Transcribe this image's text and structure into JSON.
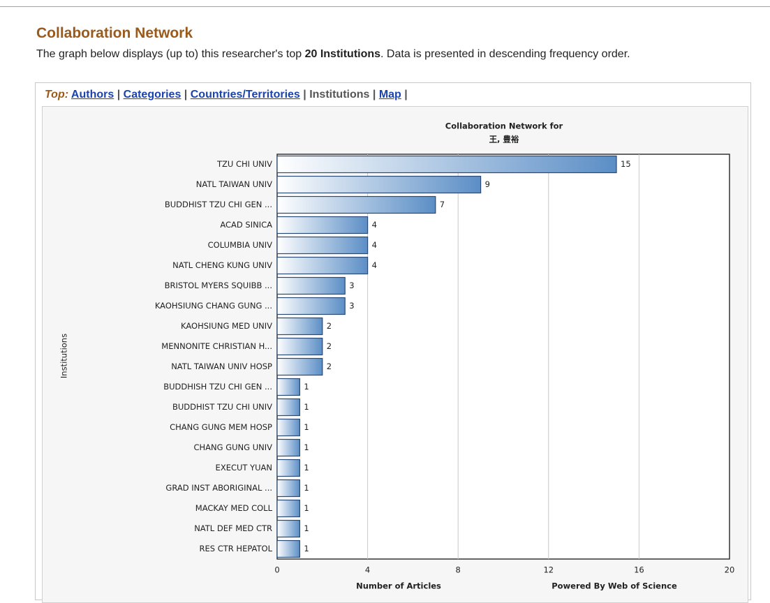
{
  "header": {
    "title": "Collaboration Network",
    "description": [
      "The graph below displays (up to) this researcher's top ",
      "20 Institutions",
      ". Data is presented in descending frequency order."
    ]
  },
  "tabs": {
    "label": "Top:",
    "items": [
      "Authors",
      "Categories",
      "Countries/Territories",
      "Institutions",
      "Map"
    ],
    "current": 3,
    "separator": "|"
  },
  "chart_data": {
    "type": "bar",
    "orientation": "horizontal",
    "title": [
      "Collaboration Network for",
      "王, 豊裕"
    ],
    "categories": [
      "TZU CHI UNIV",
      "NATL TAIWAN UNIV",
      "BUDDHIST TZU CHI GEN ...",
      "ACAD SINICA",
      "COLUMBIA UNIV",
      "NATL CHENG KUNG UNIV",
      "BRISTOL MYERS SQUIBB ...",
      "KAOHSIUNG CHANG GUNG ...",
      "KAOHSIUNG MED UNIV",
      "MENNONITE CHRISTIAN H...",
      "NATL TAIWAN UNIV HOSP",
      "BUDDHISH TZU CHI GEN ...",
      "BUDDHIST TZU CHI UNIV",
      "CHANG GUNG MEM HOSP",
      "CHANG GUNG UNIV",
      "EXECUT YUAN",
      "GRAD INST ABORIGINAL ...",
      "MACKAY MED COLL",
      "NATL DEF MED CTR",
      "RES CTR HEPATOL"
    ],
    "values": [
      15,
      9,
      7,
      4,
      4,
      4,
      3,
      3,
      2,
      2,
      2,
      1,
      1,
      1,
      1,
      1,
      1,
      1,
      1,
      1
    ],
    "color": "#5b8ec6",
    "xlim": [
      0,
      20
    ],
    "xticks": [
      0,
      4,
      8,
      12,
      16,
      20
    ],
    "grid": true,
    "xlabel": "Number of Articles",
    "ylabel": "Institutions",
    "footer": "Powered By Web of Science"
  }
}
